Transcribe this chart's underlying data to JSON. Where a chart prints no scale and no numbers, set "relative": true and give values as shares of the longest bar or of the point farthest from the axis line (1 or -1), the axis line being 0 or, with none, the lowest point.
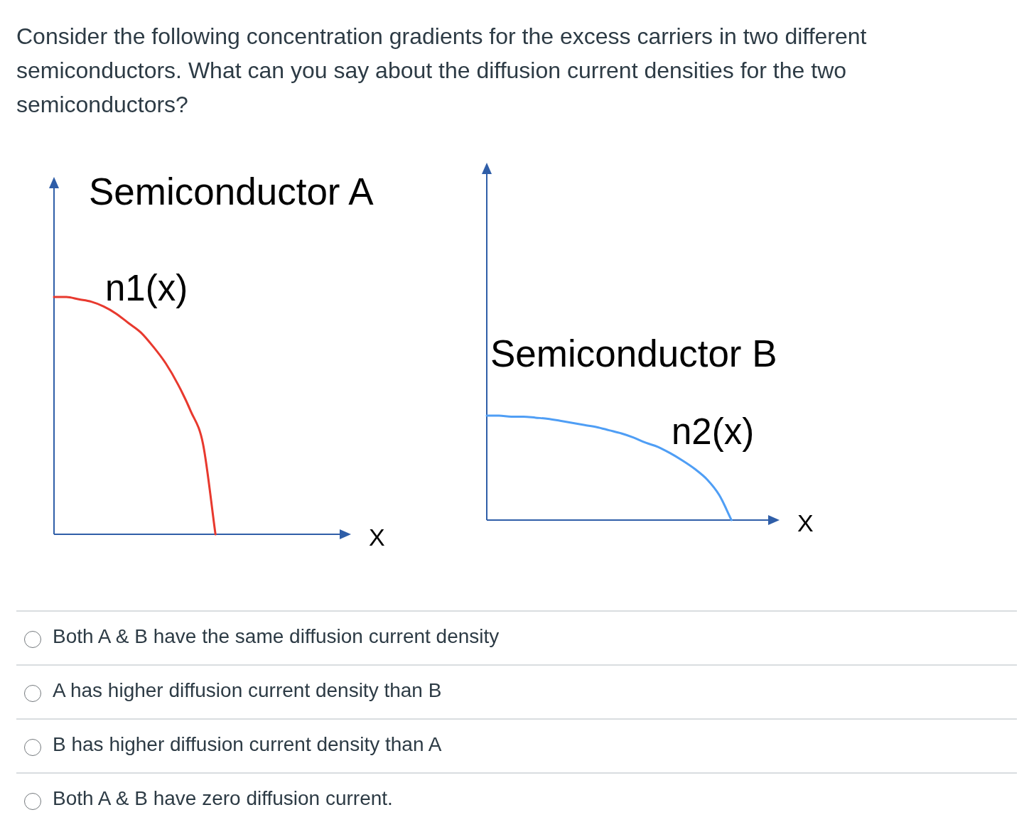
{
  "chart_data": [
    {
      "type": "other",
      "annotations": [
        "Consider the following concentration gradients for the excess carriers in two different semiconductors. What can you say about the diffusion current densities for the two semiconductors?"
      ]
    },
    {
      "type": "line",
      "title": "Semiconductor A",
      "xlabel": "X",
      "relative": true,
      "categories": [
        null,
        null,
        null,
        null,
        null,
        null,
        null,
        null,
        null,
        null,
        null,
        null,
        null,
        null,
        null,
        null,
        null,
        null,
        null,
        null,
        null,
        null,
        null,
        null
      ],
      "series": [
        {
          "name": "n1(x)",
          "color": "#e8392e",
          "values": [
            1,
            1,
            0.99,
            0.98,
            0.96,
            0.93,
            0.89,
            0.85,
            0.79,
            0.72,
            0.63,
            0.52,
            0.38,
            0,
            null,
            null,
            null,
            null,
            null,
            null,
            null,
            null,
            null,
            null
          ]
        }
      ]
    },
    {
      "type": "line",
      "title": "Semiconductor B",
      "xlabel": "X",
      "relative": true,
      "categories": [
        null,
        null,
        null,
        null,
        null,
        null,
        null,
        null,
        null,
        null,
        null,
        null,
        null,
        null,
        null,
        null,
        null,
        null,
        null,
        null,
        null,
        null,
        null,
        null
      ],
      "series": [
        {
          "name": "n2(x)",
          "color": "#4f9ef5",
          "values": [
            1,
            1,
            0.99,
            0.99,
            0.98,
            0.97,
            0.95,
            0.93,
            0.91,
            0.89,
            0.86,
            0.83,
            0.79,
            0.74,
            0.7,
            0.64,
            0.57,
            0.49,
            0.39,
            0.24,
            0,
            null,
            null,
            null
          ]
        }
      ]
    },
    {
      "type": "other",
      "annotations": [
        "Both A & B have the same diffusion current density",
        "A has higher diffusion current density than B",
        "B has higher diffusion current density than A",
        "Both A & B have zero diffusion current."
      ]
    }
  ]
}
